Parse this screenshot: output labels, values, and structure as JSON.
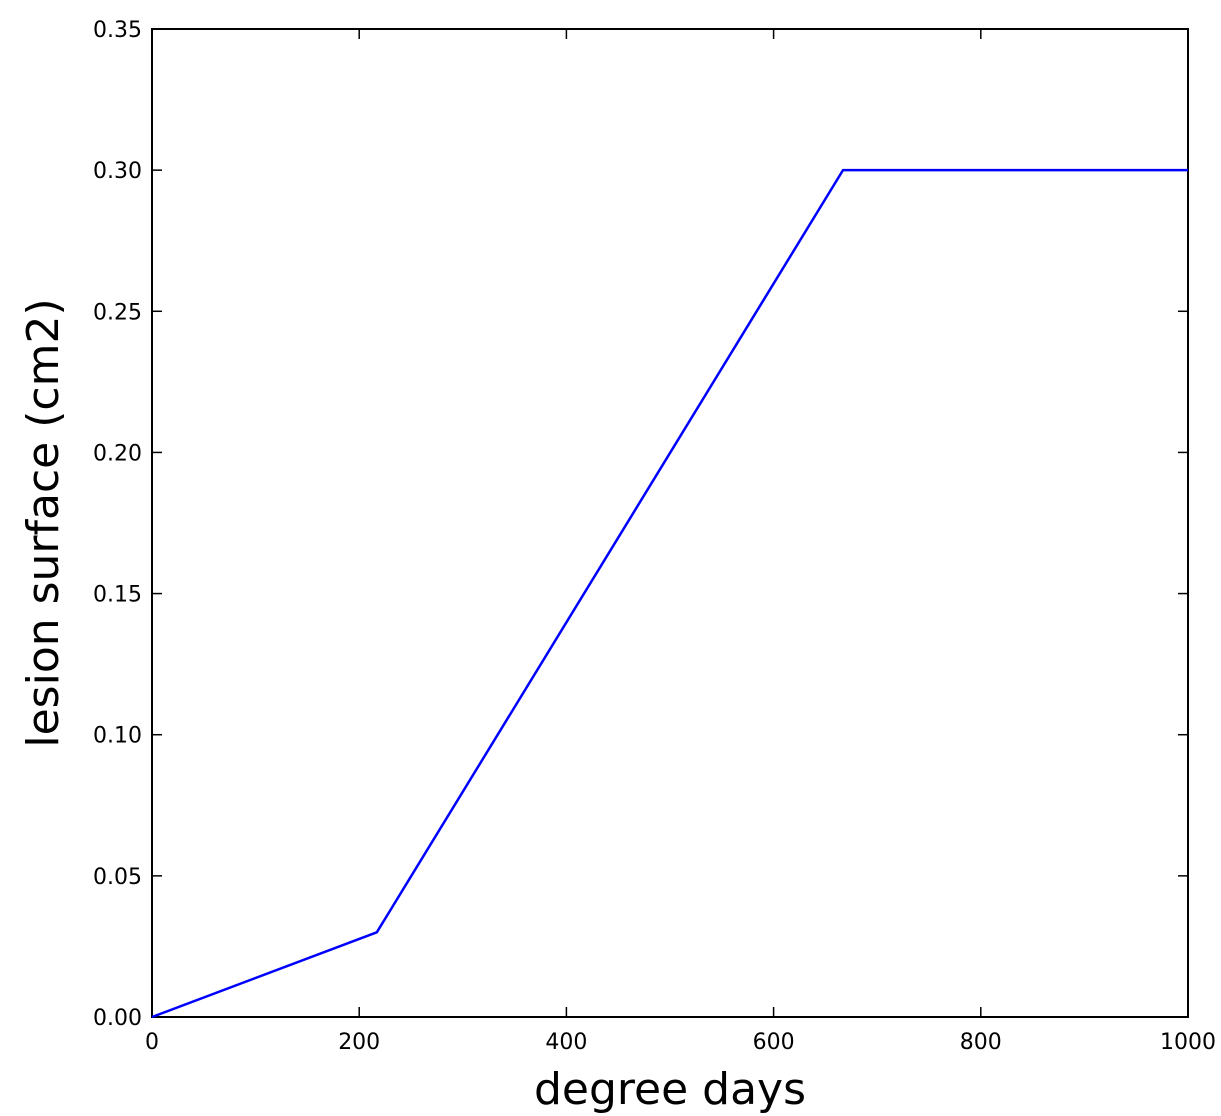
{
  "chart_data": {
    "type": "line",
    "title": "",
    "xlabel": "degree days",
    "ylabel": "lesion surface (cm2)",
    "xlim": [
      0,
      1000
    ],
    "ylim": [
      0,
      0.35
    ],
    "xticks": [
      0,
      200,
      400,
      600,
      800,
      1000
    ],
    "xtick_labels": [
      "0",
      "200",
      "400",
      "600",
      "800",
      "1000"
    ],
    "yticks": [
      0,
      0.05,
      0.1,
      0.15,
      0.2,
      0.25,
      0.3,
      0.35
    ],
    "ytick_labels": [
      "0.00",
      "0.05",
      "0.10",
      "0.15",
      "0.20",
      "0.25",
      "0.30",
      "0.35"
    ],
    "grid": false,
    "series": [
      {
        "color": "#0000ff",
        "x": [
          0,
          217,
          667,
          1000
        ],
        "y": [
          0,
          0.03,
          0.3,
          0.3
        ]
      }
    ]
  }
}
